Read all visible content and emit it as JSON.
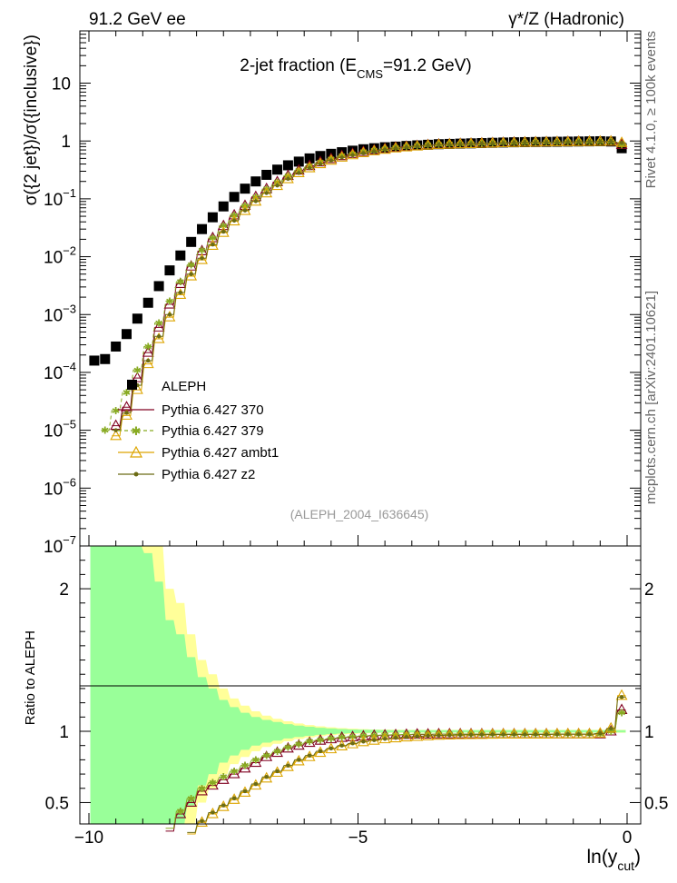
{
  "header": {
    "left": "91.2 GeV ee",
    "right": "γ*/Z (Hadronic)"
  },
  "side_labels": {
    "rivet": "Rivet 4.1.0, ≥ 100k events",
    "mcplots": "mcplots.cern.ch [arXiv:2401.10621]"
  },
  "chart_data": [
    {
      "type": "scatter",
      "panel": "main",
      "title": "2-jet fraction (E_CMS=91.2 GeV)",
      "title_parts": {
        "pre": "2-jet fraction (E",
        "sub": "CMS",
        "post": "=91.2 GeV)"
      },
      "analysis_label": "(ALEPH_2004_I636645)",
      "xlabel": "ln(y_cut)",
      "xlabel_parts": {
        "pre": "ln(y",
        "sub": "cut",
        "post": ")"
      },
      "ylabel": "σ({2 jet})/σ({inclusive})",
      "yscale": "log",
      "xlim": [
        -10,
        0.2
      ],
      "ylim": [
        1e-07,
        80
      ],
      "y_ticks": [
        {
          "value": 10,
          "label": "10"
        },
        {
          "value": 1,
          "label": "1"
        },
        {
          "value": 0.1,
          "label": "10",
          "exp": "−1"
        },
        {
          "value": 0.01,
          "label": "10",
          "exp": "−2"
        },
        {
          "value": 0.001,
          "label": "10",
          "exp": "−3"
        },
        {
          "value": 0.0001,
          "label": "10",
          "exp": "−4"
        },
        {
          "value": 1e-05,
          "label": "10",
          "exp": "−5"
        },
        {
          "value": 1e-06,
          "label": "10",
          "exp": "−6"
        },
        {
          "value": 1e-07,
          "label": "10",
          "exp": "−7"
        }
      ],
      "x": [
        -9.9,
        -9.7,
        -9.5,
        -9.3,
        -9.1,
        -8.9,
        -8.7,
        -8.5,
        -8.3,
        -8.1,
        -7.9,
        -7.7,
        -7.5,
        -7.3,
        -7.1,
        -6.9,
        -6.7,
        -6.5,
        -6.3,
        -6.1,
        -5.9,
        -5.7,
        -5.5,
        -5.3,
        -5.1,
        -4.9,
        -4.7,
        -4.5,
        -4.3,
        -4.1,
        -3.9,
        -3.7,
        -3.5,
        -3.3,
        -3.1,
        -2.9,
        -2.7,
        -2.5,
        -2.3,
        -2.1,
        -1.9,
        -1.7,
        -1.5,
        -1.3,
        -1.1,
        -0.9,
        -0.7,
        -0.5,
        -0.3,
        -0.1
      ],
      "series": [
        {
          "name": "ALEPH",
          "color": "#000000",
          "marker": "square",
          "line": "none",
          "values": [
            0.00016,
            0.00017,
            0.00028,
            0.00046,
            0.00085,
            0.0016,
            0.0031,
            0.0058,
            0.0105,
            0.018,
            0.03,
            0.048,
            0.074,
            0.108,
            0.15,
            0.2,
            0.26,
            0.32,
            0.38,
            0.44,
            0.5,
            0.55,
            0.6,
            0.64,
            0.68,
            0.72,
            0.75,
            0.78,
            0.8,
            0.82,
            0.84,
            0.86,
            0.88,
            0.89,
            0.9,
            0.91,
            0.92,
            0.93,
            0.94,
            0.95,
            0.955,
            0.96,
            0.965,
            0.97,
            0.975,
            0.98,
            0.985,
            0.99,
            0.98,
            0.75
          ]
        },
        {
          "name": "Pythia 6.427 370",
          "color": "#800020",
          "marker": "triangle",
          "line": "solid",
          "values": [
            null,
            null,
            1.2e-05,
            2.5e-05,
            8e-05,
            0.00022,
            0.0006,
            0.0015,
            0.0034,
            0.0068,
            0.0125,
            0.021,
            0.034,
            0.052,
            0.076,
            0.108,
            0.148,
            0.195,
            0.25,
            0.31,
            0.37,
            0.43,
            0.49,
            0.55,
            0.6,
            0.65,
            0.69,
            0.73,
            0.77,
            0.8,
            0.82,
            0.85,
            0.87,
            0.88,
            0.89,
            0.9,
            0.91,
            0.92,
            0.93,
            0.94,
            0.945,
            0.95,
            0.955,
            0.96,
            0.965,
            0.97,
            0.97,
            0.975,
            0.98,
            0.86
          ]
        },
        {
          "name": "Pythia 6.427 379",
          "color": "#88aa22",
          "marker": "star",
          "line": "dashed",
          "values": [
            null,
            1e-05,
            2.2e-05,
            4.5e-05,
            0.00011,
            0.00028,
            0.00072,
            0.0017,
            0.0037,
            0.0072,
            0.0128,
            0.021,
            0.034,
            0.052,
            0.076,
            0.108,
            0.148,
            0.195,
            0.25,
            0.31,
            0.37,
            0.43,
            0.49,
            0.55,
            0.6,
            0.65,
            0.69,
            0.73,
            0.77,
            0.8,
            0.82,
            0.85,
            0.87,
            0.88,
            0.89,
            0.9,
            0.91,
            0.92,
            0.93,
            0.94,
            0.945,
            0.95,
            0.955,
            0.96,
            0.965,
            0.97,
            0.97,
            0.975,
            0.98,
            0.85
          ]
        },
        {
          "name": "Pythia 6.427 ambt1",
          "color": "#dda500",
          "marker": "triangle",
          "line": "solid",
          "values": [
            null,
            null,
            8e-06,
            1.8e-05,
            5e-05,
            0.00014,
            0.00038,
            0.0009,
            0.0022,
            0.0046,
            0.0088,
            0.0155,
            0.026,
            0.041,
            0.062,
            0.09,
            0.125,
            0.168,
            0.22,
            0.28,
            0.34,
            0.4,
            0.46,
            0.52,
            0.57,
            0.62,
            0.67,
            0.71,
            0.75,
            0.78,
            0.81,
            0.84,
            0.86,
            0.87,
            0.88,
            0.89,
            0.9,
            0.91,
            0.92,
            0.93,
            0.94,
            0.945,
            0.95,
            0.955,
            0.96,
            0.965,
            0.97,
            0.975,
            0.98,
            0.93
          ]
        },
        {
          "name": "Pythia 6.427 z2",
          "color": "#6b6b14",
          "marker": "dot",
          "line": "solid",
          "values": [
            null,
            null,
            1e-05,
            2e-05,
            6e-05,
            0.00016,
            0.00042,
            0.001,
            0.0024,
            0.005,
            0.0094,
            0.0162,
            0.027,
            0.042,
            0.063,
            0.091,
            0.126,
            0.17,
            0.222,
            0.28,
            0.34,
            0.4,
            0.46,
            0.52,
            0.57,
            0.62,
            0.67,
            0.71,
            0.75,
            0.78,
            0.81,
            0.84,
            0.86,
            0.87,
            0.88,
            0.89,
            0.9,
            0.91,
            0.92,
            0.93,
            0.94,
            0.945,
            0.95,
            0.955,
            0.96,
            0.965,
            0.97,
            0.975,
            0.98,
            0.93
          ]
        }
      ]
    },
    {
      "type": "scatter",
      "panel": "ratio",
      "ylabel": "Ratio to ALEPH",
      "ylim": [
        0.35,
        2.3
      ],
      "x_ticks": [
        {
          "value": -10,
          "label": "−10"
        },
        {
          "value": -5,
          "label": "−5"
        },
        {
          "value": 0,
          "label": "0"
        }
      ],
      "y_ticks": [
        {
          "value": 0.5,
          "label": "0.5"
        },
        {
          "value": 1,
          "label": "1"
        },
        {
          "value": 2,
          "label": "2"
        }
      ],
      "band_inner_halfwidth": [
        3.0,
        2.5,
        2.0,
        1.7,
        1.45,
        1.25,
        1.05,
        0.78,
        0.68,
        0.52,
        0.38,
        0.3,
        0.22,
        0.17,
        0.13,
        0.1,
        0.08,
        0.065,
        0.05,
        0.04,
        0.032,
        0.025,
        0.02,
        0.016,
        0.013,
        0.011,
        0.01,
        0.009,
        0.008,
        0.008,
        0.008,
        0.008,
        0.008,
        0.008,
        0.008,
        0.008,
        0.008,
        0.008,
        0.008,
        0.008,
        0.008,
        0.008,
        0.008,
        0.008,
        0.008,
        0.008,
        0.008,
        0.008,
        0.008,
        0.008
      ],
      "band_outer_halfwidth": [
        3.0,
        2.8,
        2.4,
        2.2,
        1.9,
        1.6,
        1.3,
        1.0,
        0.9,
        0.68,
        0.5,
        0.4,
        0.3,
        0.23,
        0.18,
        0.14,
        0.11,
        0.088,
        0.07,
        0.055,
        0.044,
        0.035,
        0.028,
        0.022,
        0.018,
        0.015,
        0.013,
        0.012,
        0.011,
        0.01,
        0.01,
        0.01,
        0.01,
        0.01,
        0.01,
        0.01,
        0.01,
        0.01,
        0.01,
        0.01,
        0.01,
        0.01,
        0.01,
        0.01,
        0.01,
        0.01,
        0.01,
        0.01,
        0.01,
        0.01
      ],
      "series": [
        {
          "name": "Pythia 6.427 370",
          "color": "#800020",
          "marker": "triangle",
          "values": [
            null,
            null,
            null,
            null,
            null,
            null,
            null,
            0.3,
            0.42,
            0.5,
            0.58,
            0.62,
            0.66,
            0.7,
            0.74,
            0.78,
            0.82,
            0.85,
            0.88,
            0.9,
            0.92,
            0.935,
            0.945,
            0.955,
            0.96,
            0.965,
            0.97,
            0.972,
            0.974,
            0.976,
            0.978,
            0.978,
            0.98,
            0.98,
            0.98,
            0.98,
            0.98,
            0.98,
            0.98,
            0.98,
            0.98,
            0.98,
            0.98,
            0.98,
            0.98,
            0.98,
            0.98,
            0.98,
            1.0,
            1.15
          ]
        },
        {
          "name": "Pythia 6.427 379",
          "color": "#88aa22",
          "marker": "star",
          "values": [
            null,
            null,
            null,
            null,
            null,
            null,
            null,
            0.32,
            0.44,
            0.53,
            0.6,
            0.64,
            0.68,
            0.72,
            0.76,
            0.8,
            0.83,
            0.86,
            0.89,
            0.91,
            0.93,
            0.94,
            0.95,
            0.958,
            0.963,
            0.968,
            0.972,
            0.974,
            0.976,
            0.978,
            0.98,
            0.98,
            0.98,
            0.98,
            0.98,
            0.98,
            0.98,
            0.98,
            0.98,
            0.98,
            0.98,
            0.98,
            0.98,
            0.98,
            0.98,
            0.98,
            0.98,
            0.98,
            1.0,
            1.13
          ]
        },
        {
          "name": "Pythia 6.427 ambt1",
          "color": "#dda500",
          "marker": "triangle",
          "values": [
            null,
            null,
            null,
            null,
            null,
            null,
            null,
            null,
            null,
            0.28,
            0.36,
            0.42,
            0.47,
            0.52,
            0.57,
            0.62,
            0.67,
            0.71,
            0.75,
            0.79,
            0.82,
            0.85,
            0.875,
            0.895,
            0.91,
            0.925,
            0.935,
            0.945,
            0.952,
            0.958,
            0.962,
            0.966,
            0.97,
            0.972,
            0.974,
            0.975,
            0.976,
            0.977,
            0.978,
            0.978,
            0.978,
            0.978,
            0.978,
            0.98,
            0.98,
            0.98,
            0.98,
            0.985,
            1.02,
            1.25
          ]
        },
        {
          "name": "Pythia 6.427 z2",
          "color": "#6b6b14",
          "marker": "dot",
          "values": [
            null,
            null,
            null,
            null,
            null,
            null,
            null,
            null,
            null,
            0.29,
            0.37,
            0.43,
            0.48,
            0.53,
            0.58,
            0.63,
            0.68,
            0.72,
            0.76,
            0.8,
            0.83,
            0.86,
            0.88,
            0.9,
            0.915,
            0.928,
            0.938,
            0.947,
            0.954,
            0.96,
            0.964,
            0.968,
            0.971,
            0.973,
            0.975,
            0.976,
            0.977,
            0.978,
            0.978,
            0.978,
            0.978,
            0.978,
            0.978,
            0.98,
            0.98,
            0.98,
            0.98,
            0.985,
            1.02,
            1.24
          ]
        }
      ]
    }
  ]
}
